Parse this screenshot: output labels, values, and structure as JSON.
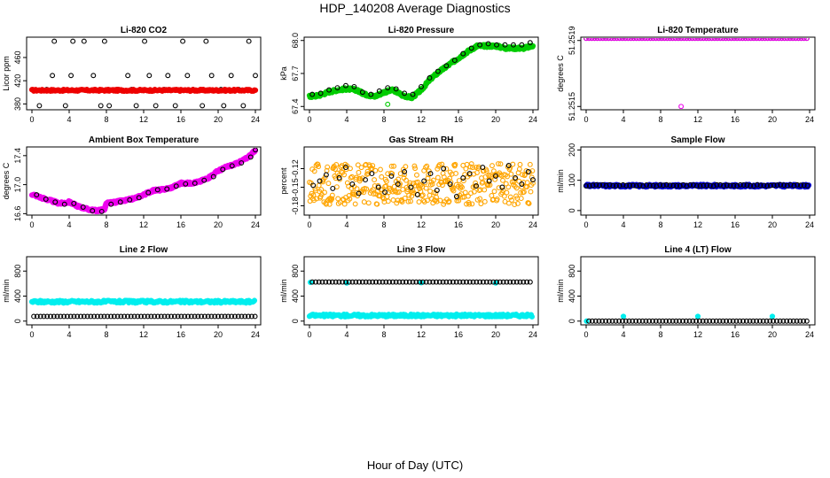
{
  "figure": {
    "title": "HDP_140208  Average Diagnostics",
    "xlabel": "Hour of Day (UTC)"
  },
  "colors": {
    "black": "#000000",
    "red": "#ee0000",
    "green": "#00cc00",
    "magenta": "#ee00ee",
    "orange": "#ffa500",
    "blue": "#0000cc",
    "cyan": "#00eeee"
  },
  "chart_data": [
    {
      "type": "scatter",
      "title": "Li-820 CO2",
      "ylabel": "Licor ppm",
      "xlim": [
        0,
        24
      ],
      "ylim": [
        370,
        495
      ],
      "xticks": [
        "0",
        "4",
        "8",
        "12",
        "16",
        "20",
        "24"
      ],
      "yticks": [
        380,
        420,
        460
      ],
      "ytick_labels": [
        "380",
        "420",
        "460"
      ],
      "series": [
        {
          "name": "black",
          "color": "black",
          "marker": "open",
          "x": [
            0.8,
            1.6,
            2.2,
            2.4,
            3.6,
            4.2,
            4.4,
            5.6,
            6.6,
            7.4,
            7.8,
            8.3,
            9.2,
            10.3,
            10.7,
            11.2,
            12.1,
            12.6,
            13.3,
            14.2,
            14.6,
            15.4,
            16.2,
            16.7,
            17.3,
            18.3,
            18.7,
            19.3,
            20.3,
            20.6,
            21.4,
            22.2,
            22.7,
            23.3,
            24.0
          ],
          "y": [
            377,
            405,
            429,
            488,
            377,
            429,
            488,
            488,
            429,
            377,
            488,
            377,
            405,
            429,
            405,
            377,
            488,
            429,
            377,
            405,
            429,
            377,
            488,
            429,
            405,
            377,
            488,
            429,
            405,
            377,
            429,
            405,
            377,
            488,
            429
          ]
        },
        {
          "name": "red",
          "color": "red",
          "marker": "filled",
          "band": [
            402,
            405
          ],
          "x_range": [
            0,
            24.1
          ],
          "y": 403
        }
      ]
    },
    {
      "type": "scatter",
      "title": "Li-820 Pressure",
      "ylabel": "kPa",
      "xlim": [
        0,
        24
      ],
      "ylim": [
        67.37,
        68.03
      ],
      "xticks": [
        "0",
        "4",
        "8",
        "12",
        "16",
        "20",
        "24"
      ],
      "yticks": [
        67.4,
        67.7,
        68.0
      ],
      "ytick_labels": [
        "67.4",
        "67.7",
        "68.0"
      ],
      "series": [
        {
          "name": "green",
          "color": "green",
          "marker": "filled",
          "x": [
            0,
            1,
            2,
            3,
            4,
            5,
            6,
            7,
            8,
            9,
            10,
            11,
            12,
            13,
            14,
            15,
            16,
            17,
            18,
            19,
            20,
            21,
            22,
            23,
            24
          ],
          "y": [
            67.49,
            67.5,
            67.53,
            67.55,
            67.56,
            67.55,
            67.51,
            67.49,
            67.53,
            67.55,
            67.5,
            67.48,
            67.55,
            67.65,
            67.72,
            67.78,
            67.84,
            67.9,
            67.95,
            67.95,
            67.95,
            67.93,
            67.93,
            67.93,
            67.95
          ]
        },
        {
          "name": "black",
          "color": "black",
          "marker": "open",
          "x": [
            0.3,
            1.2,
            2.1,
            3.0,
            3.9,
            4.8,
            5.7,
            6.6,
            7.5,
            8.4,
            9.3,
            10.2,
            11.1,
            12.0,
            12.9,
            13.8,
            14.7,
            15.6,
            16.5,
            17.4,
            18.3,
            19.2,
            20.1,
            21.0,
            21.9,
            22.8,
            23.7
          ],
          "y": [
            67.51,
            67.52,
            67.55,
            67.57,
            67.59,
            67.58,
            67.53,
            67.51,
            67.54,
            67.57,
            67.56,
            67.52,
            67.51,
            67.58,
            67.66,
            67.72,
            67.77,
            67.82,
            67.88,
            67.93,
            67.96,
            67.97,
            67.96,
            67.96,
            67.96,
            67.96,
            67.98
          ]
        },
        {
          "name": "green-outlier",
          "color": "green",
          "marker": "open",
          "x": [
            8.4
          ],
          "y": [
            67.42
          ]
        }
      ]
    },
    {
      "type": "scatter",
      "title": "Li-820 Temperature",
      "ylabel": "degrees C",
      "xlim": [
        0,
        24
      ],
      "ylim": [
        51.25148,
        51.25192
      ],
      "xticks": [
        "0",
        "4",
        "8",
        "12",
        "16",
        "20",
        "24"
      ],
      "yticks": [
        51.2515,
        51.2519
      ],
      "ytick_labels": [
        "51.2515",
        "51.2519"
      ],
      "series": [
        {
          "name": "black",
          "color": "black",
          "marker": "open",
          "band_top": true
        },
        {
          "name": "magenta",
          "color": "magenta",
          "marker": "open",
          "band_top": true
        },
        {
          "name": "magenta-outlier",
          "color": "magenta",
          "marker": "open",
          "x": [
            10.2
          ],
          "y": [
            51.2515
          ]
        }
      ]
    },
    {
      "type": "scatter",
      "title": "Ambient Box Temperature",
      "ylabel": "degrees C",
      "xlim": [
        0,
        24
      ],
      "ylim": [
        16.58,
        17.52
      ],
      "xticks": [
        "0",
        "4",
        "8",
        "12",
        "16",
        "20",
        "24"
      ],
      "yticks": [
        16.6,
        17.0,
        17.4
      ],
      "ytick_labels": [
        "16.6",
        "17.0",
        "17.4"
      ],
      "series": [
        {
          "name": "magenta",
          "color": "magenta",
          "marker": "filled",
          "x": [
            0,
            1,
            2,
            3,
            4,
            5,
            6,
            7,
            7.8,
            8,
            9,
            10,
            11,
            12,
            13,
            14,
            15,
            16,
            17,
            18,
            19,
            20,
            21,
            22,
            23,
            24
          ],
          "y": [
            16.87,
            16.82,
            16.78,
            16.74,
            16.76,
            16.7,
            16.66,
            16.64,
            16.66,
            16.74,
            16.76,
            16.78,
            16.81,
            16.86,
            16.92,
            16.93,
            16.96,
            17.02,
            17.02,
            17.04,
            17.1,
            17.19,
            17.25,
            17.29,
            17.36,
            17.47
          ]
        },
        {
          "name": "black",
          "color": "black",
          "marker": "open",
          "x": [
            0.5,
            1.5,
            2.5,
            3.5,
            4.5,
            5.5,
            6.5,
            7.5,
            8.5,
            9.5,
            10.5,
            11.5,
            12.5,
            13.5,
            14.5,
            15.5,
            16.5,
            17.5,
            18.5,
            19.5,
            20.5,
            21.5,
            22.5,
            23.5,
            24.0
          ],
          "y": [
            16.86,
            16.8,
            16.76,
            16.73,
            16.74,
            16.69,
            16.64,
            16.63,
            16.73,
            16.76,
            16.79,
            16.82,
            16.89,
            16.93,
            16.94,
            16.98,
            17.01,
            17.02,
            17.06,
            17.11,
            17.21,
            17.26,
            17.3,
            17.38,
            17.48
          ]
        }
      ]
    },
    {
      "type": "scatter",
      "title": "Gas Stream RH",
      "ylabel": "percent",
      "xlim": [
        0,
        24
      ],
      "ylim": [
        -0.195,
        -0.085
      ],
      "xticks": [
        "0",
        "4",
        "8",
        "12",
        "16",
        "20",
        "24"
      ],
      "yticks": [
        -0.18,
        -0.15,
        -0.12
      ],
      "ytick_labels": [
        "-0.18",
        "-0.15",
        "-0.12"
      ],
      "series": [
        {
          "name": "orange",
          "color": "orange",
          "marker": "open",
          "band": [
            -0.178,
            -0.112
          ],
          "x_range": [
            0,
            24
          ]
        },
        {
          "name": "black",
          "color": "black",
          "marker": "open",
          "x": [
            0.4,
            1.1,
            1.8,
            2.5,
            3.2,
            3.9,
            4.6,
            5.3,
            6.0,
            6.7,
            7.4,
            8.1,
            8.8,
            9.5,
            10.2,
            10.9,
            11.6,
            12.3,
            13.0,
            13.7,
            14.4,
            15.1,
            15.8,
            16.5,
            17.2,
            17.9,
            18.6,
            19.3,
            20.0,
            20.7,
            21.4,
            22.1,
            22.8,
            23.5,
            24.0
          ],
          "y": [
            -0.147,
            -0.14,
            -0.13,
            -0.152,
            -0.135,
            -0.118,
            -0.145,
            -0.16,
            -0.138,
            -0.128,
            -0.15,
            -0.158,
            -0.132,
            -0.145,
            -0.125,
            -0.15,
            -0.162,
            -0.14,
            -0.128,
            -0.155,
            -0.12,
            -0.145,
            -0.165,
            -0.135,
            -0.128,
            -0.148,
            -0.118,
            -0.14,
            -0.132,
            -0.15,
            -0.115,
            -0.135,
            -0.145,
            -0.125,
            -0.138
          ]
        }
      ]
    },
    {
      "type": "scatter",
      "title": "Sample Flow",
      "ylabel": "ml/min",
      "xlim": [
        0,
        24
      ],
      "ylim": [
        -15,
        210
      ],
      "xticks": [
        "0",
        "4",
        "8",
        "12",
        "16",
        "20",
        "24"
      ],
      "yticks": [
        0,
        100,
        200
      ],
      "ytick_labels": [
        "0",
        "100",
        "200"
      ],
      "series": [
        {
          "name": "blue",
          "color": "blue",
          "marker": "filled",
          "band": [
            78,
            86
          ],
          "x_range": [
            0,
            24
          ]
        },
        {
          "name": "black",
          "color": "black",
          "marker": "open",
          "band": [
            81,
            85
          ],
          "x_range": [
            0,
            24
          ]
        }
      ]
    },
    {
      "type": "scatter",
      "title": "Line 2 Flow",
      "ylabel": "ml/min",
      "xlim": [
        0,
        24
      ],
      "ylim": [
        -60,
        1030
      ],
      "xticks": [
        "0",
        "4",
        "8",
        "12",
        "16",
        "20",
        "24"
      ],
      "yticks": [
        0,
        400,
        800
      ],
      "ytick_labels": [
        "0",
        "400",
        "800"
      ],
      "series": [
        {
          "name": "cyan",
          "color": "cyan",
          "marker": "filled",
          "band": [
            290,
            330
          ],
          "x_range": [
            0,
            24
          ]
        },
        {
          "name": "black",
          "color": "black",
          "marker": "open",
          "band": [
            75,
            75
          ],
          "x_range": [
            0.2,
            24
          ]
        }
      ]
    },
    {
      "type": "scatter",
      "title": "Line 3 Flow",
      "ylabel": "ml/min",
      "xlim": [
        0,
        24
      ],
      "ylim": [
        -60,
        1030
      ],
      "xticks": [
        "0",
        "4",
        "8",
        "12",
        "16",
        "20",
        "24"
      ],
      "yticks": [
        0,
        400,
        800
      ],
      "ytick_labels": [
        "0",
        "400",
        "800"
      ],
      "series": [
        {
          "name": "cyan",
          "color": "cyan",
          "marker": "filled",
          "band": [
            70,
            110
          ],
          "x_range": [
            0,
            24
          ]
        },
        {
          "name": "cyan-top",
          "color": "cyan",
          "marker": "filled",
          "x": [
            0.1,
            4.0,
            12.0,
            20.0
          ],
          "y": [
            620,
            610,
            615,
            610
          ]
        },
        {
          "name": "black",
          "color": "black",
          "marker": "open",
          "band": [
            625,
            625
          ],
          "x_range": [
            0.3,
            24
          ]
        }
      ]
    },
    {
      "type": "scatter",
      "title": "Line 4 (LT) Flow",
      "ylabel": "ml/min",
      "xlim": [
        0,
        24
      ],
      "ylim": [
        -60,
        1030
      ],
      "xticks": [
        "0",
        "4",
        "8",
        "12",
        "16",
        "20",
        "24"
      ],
      "yticks": [
        0,
        400,
        800
      ],
      "ytick_labels": [
        "0",
        "400",
        "800"
      ],
      "series": [
        {
          "name": "cyan",
          "color": "cyan",
          "marker": "filled",
          "x": [
            0.05,
            4.0,
            12.0,
            20.0
          ],
          "y": [
            0,
            75,
            75,
            75
          ]
        },
        {
          "name": "black",
          "color": "black",
          "marker": "open",
          "band": [
            0,
            0
          ],
          "x_range": [
            0.3,
            24
          ]
        }
      ]
    }
  ]
}
